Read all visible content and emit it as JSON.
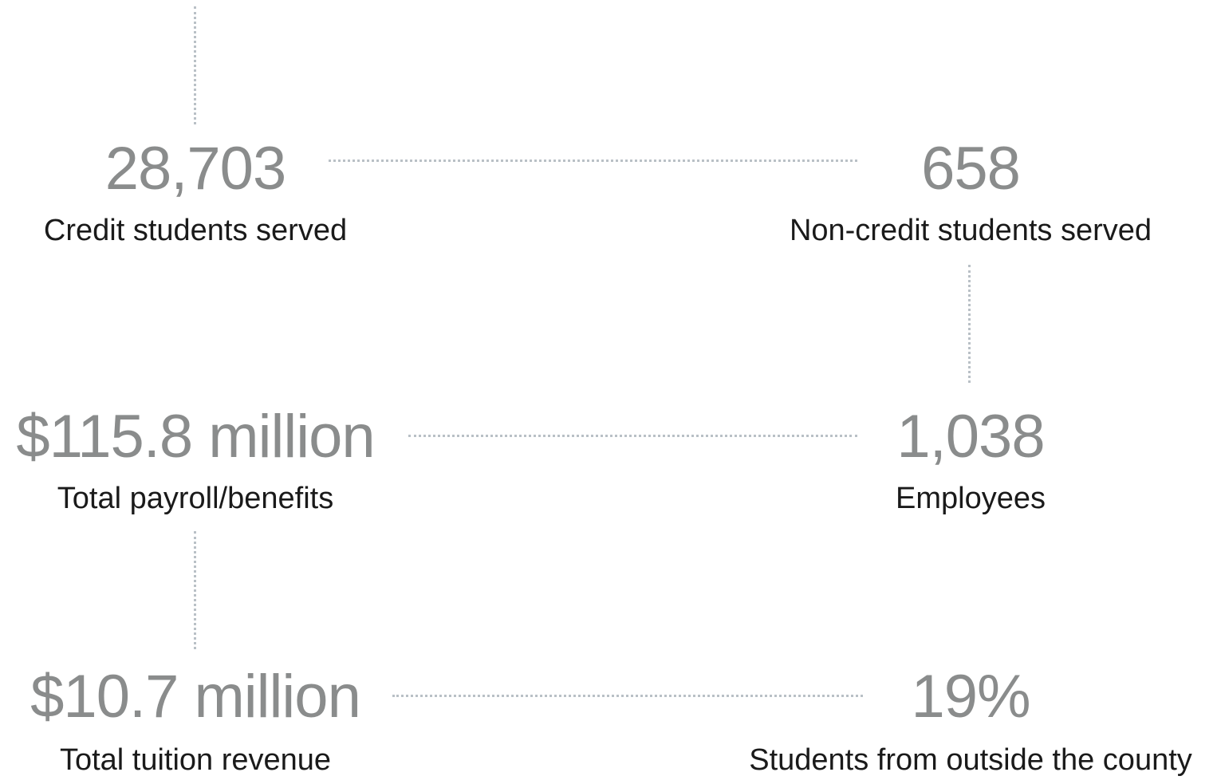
{
  "stats": [
    {
      "value": "28,703",
      "label": "Credit students served"
    },
    {
      "value": "658",
      "label": "Non-credit students served"
    },
    {
      "value": "$115.8 million",
      "label": "Total payroll/benefits"
    },
    {
      "value": "1,038",
      "label": "Employees"
    },
    {
      "value": "$10.7 million",
      "label": "Total tuition revenue"
    },
    {
      "value": "19%",
      "label": "Students from outside the county"
    }
  ],
  "colors": {
    "value_text": "#8a8c8c",
    "label_text": "#1a1a1a",
    "connector": "#b9c0c6"
  }
}
